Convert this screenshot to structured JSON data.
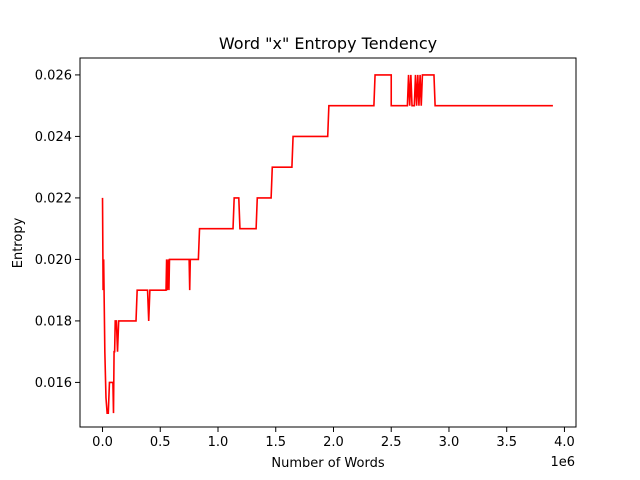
{
  "chart_data": {
    "type": "line",
    "title": "Word \"x\" Entropy Tendency",
    "xlabel": "Number of Words",
    "ylabel": "Entropy",
    "x_offset_label": "1e6",
    "xlim": [
      -0.195,
      4.1
    ],
    "ylim": [
      0.01455,
      0.02655
    ],
    "x_unit_scale": 1000000,
    "xticks": [
      0.0,
      0.5,
      1.0,
      1.5,
      2.0,
      2.5,
      3.0,
      3.5,
      4.0
    ],
    "xtick_labels": [
      "0.0",
      "0.5",
      "1.0",
      "1.5",
      "2.0",
      "2.5",
      "3.0",
      "3.5",
      "4.0"
    ],
    "yticks": [
      0.016,
      0.018,
      0.02,
      0.022,
      0.024,
      0.026
    ],
    "ytick_labels": [
      "0.016",
      "0.018",
      "0.020",
      "0.022",
      "0.024",
      "0.026"
    ],
    "grid": false,
    "series": [
      {
        "color": "#ff0000",
        "x": [
          0.0,
          0.005,
          0.01,
          0.015,
          0.02,
          0.03,
          0.04,
          0.05,
          0.06,
          0.07,
          0.075,
          0.08,
          0.09,
          0.095,
          0.1,
          0.105,
          0.11,
          0.12,
          0.13,
          0.14,
          0.15,
          0.16,
          0.17,
          0.18,
          0.2,
          0.25,
          0.29,
          0.3,
          0.35,
          0.39,
          0.4,
          0.41,
          0.45,
          0.5,
          0.55,
          0.555,
          0.56,
          0.57,
          0.575,
          0.58,
          0.6,
          0.65,
          0.7,
          0.75,
          0.755,
          0.76,
          0.8,
          0.83,
          0.84,
          1.0,
          1.13,
          1.14,
          1.18,
          1.19,
          1.33,
          1.34,
          1.46,
          1.47,
          1.64,
          1.65,
          1.95,
          1.96,
          2.2,
          2.35,
          2.36,
          2.5,
          2.5,
          2.64,
          2.65,
          2.66,
          2.67,
          2.68,
          2.7,
          2.71,
          2.72,
          2.73,
          2.74,
          2.75,
          2.76,
          2.77,
          2.8,
          2.87,
          2.88,
          3.2,
          3.5,
          3.9
        ],
        "y": [
          0.022,
          0.019,
          0.02,
          0.0185,
          0.017,
          0.0155,
          0.015,
          0.015,
          0.016,
          0.016,
          0.016,
          0.016,
          0.016,
          0.015,
          0.017,
          0.017,
          0.018,
          0.018,
          0.017,
          0.018,
          0.018,
          0.018,
          0.018,
          0.018,
          0.018,
          0.018,
          0.018,
          0.019,
          0.019,
          0.019,
          0.018,
          0.019,
          0.019,
          0.019,
          0.019,
          0.02,
          0.019,
          0.02,
          0.019,
          0.02,
          0.02,
          0.02,
          0.02,
          0.02,
          0.019,
          0.02,
          0.02,
          0.02,
          0.021,
          0.021,
          0.021,
          0.022,
          0.022,
          0.021,
          0.021,
          0.022,
          0.022,
          0.023,
          0.023,
          0.024,
          0.024,
          0.025,
          0.025,
          0.025,
          0.026,
          0.026,
          0.025,
          0.025,
          0.026,
          0.025,
          0.026,
          0.025,
          0.025,
          0.026,
          0.025,
          0.026,
          0.025,
          0.026,
          0.025,
          0.026,
          0.026,
          0.026,
          0.025,
          0.025,
          0.025,
          0.025
        ]
      }
    ]
  }
}
